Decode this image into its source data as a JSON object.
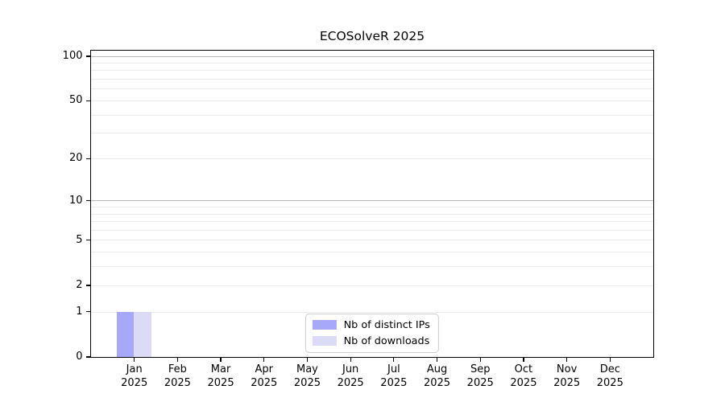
{
  "chart_data": {
    "type": "bar",
    "title": "ECOSolveR 2025",
    "categories": [
      "Jan",
      "Feb",
      "Mar",
      "Apr",
      "May",
      "Jun",
      "Jul",
      "Aug",
      "Sep",
      "Oct",
      "Nov",
      "Dec"
    ],
    "category_year": "2025",
    "series": [
      {
        "name": "Nb of distinct IPs",
        "color": "#a8a8f8",
        "values": [
          1,
          0,
          0,
          0,
          0,
          0,
          0,
          0,
          0,
          0,
          0,
          0
        ]
      },
      {
        "name": "Nb of downloads",
        "color": "#dbdbf8",
        "values": [
          1,
          0,
          0,
          0,
          0,
          0,
          0,
          0,
          0,
          0,
          0,
          0
        ]
      }
    ],
    "yscale": "log1p",
    "ylim": [
      0,
      109
    ],
    "yticks": [
      0,
      1,
      2,
      5,
      10,
      20,
      50,
      100
    ],
    "minor_yticks": [
      3,
      4,
      6,
      7,
      8,
      9,
      30,
      40,
      60,
      70,
      80,
      90
    ],
    "grid": {
      "strong_ticks": [
        10,
        100
      ],
      "strong_color": "#b9b9b9",
      "minor_color": "#ebebeb"
    },
    "legend_position": "lower center",
    "bar_group_width_ratio": 0.8
  }
}
